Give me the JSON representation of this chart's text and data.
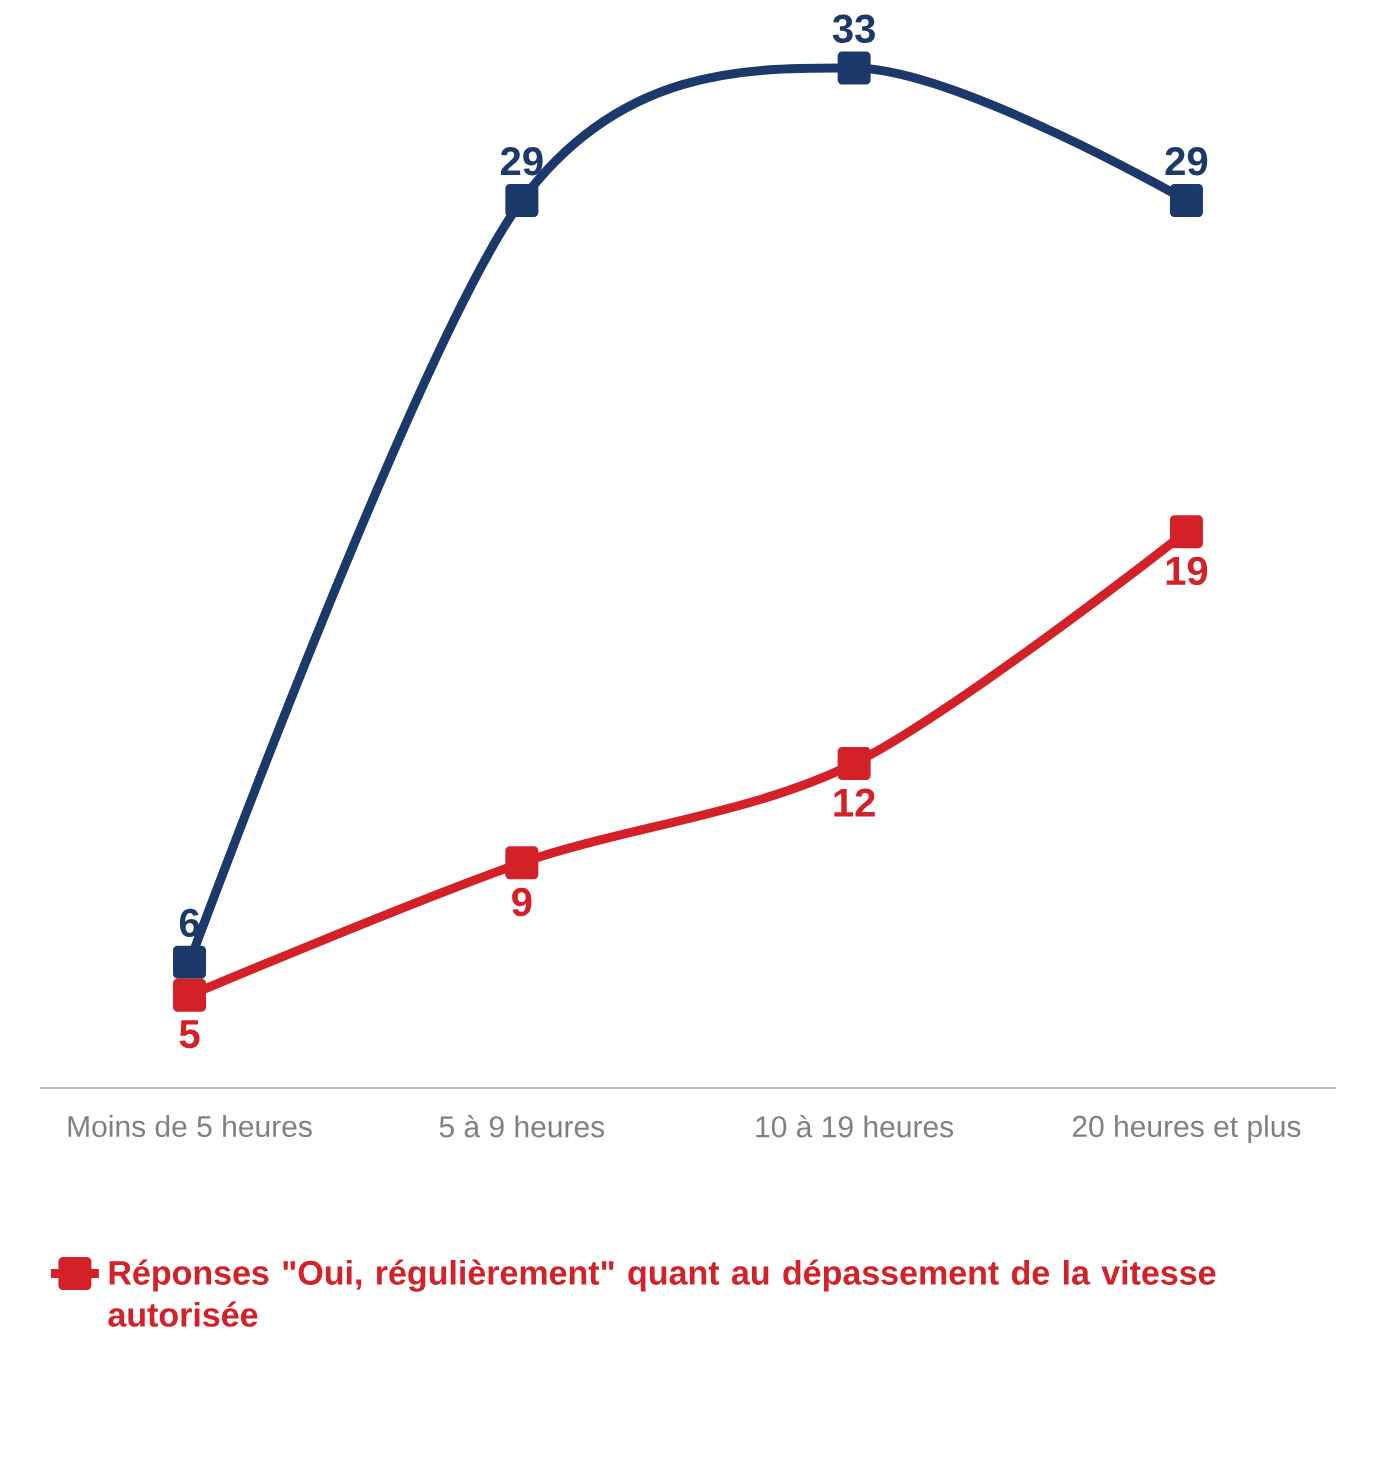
{
  "chart_data": {
    "type": "line",
    "categories": [
      "Moins de 5 heures",
      "5 à 9 heures",
      "10 à 19 heures",
      "20 heures et plus"
    ],
    "series": [
      {
        "color": "#1b3a6b",
        "values": [
          6,
          29,
          33,
          29
        ]
      },
      {
        "name": "Réponses \"Oui, régulièrement\" quant au dépassement de la vitesse autorisée",
        "color": "#d42027",
        "values": [
          5,
          9,
          12,
          19
        ]
      }
    ],
    "data_labels": true,
    "marker": "square",
    "line_style": "solid",
    "legend": "bottom"
  }
}
